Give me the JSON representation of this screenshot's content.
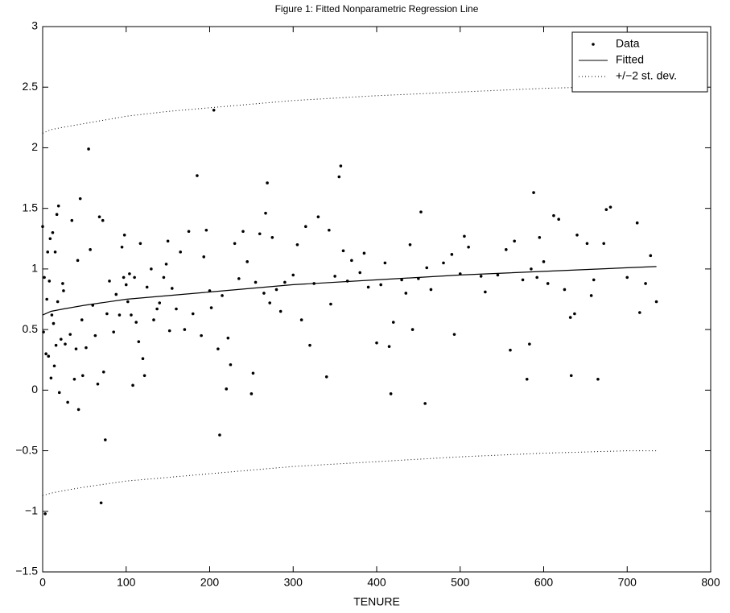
{
  "chart_data": {
    "type": "scatter",
    "title": "Figure 1: Fitted Nonparametric Regression Line",
    "x_label": "TENURE",
    "xlim": [
      0,
      800
    ],
    "xticks": [
      0,
      100,
      200,
      300,
      400,
      500,
      600,
      700,
      800
    ],
    "ylim": [
      -1.5,
      3
    ],
    "yticks": [
      {
        "value": -1.5,
        "label": "−1.5"
      },
      {
        "value": -1,
        "label": "−1"
      },
      {
        "value": -0.5,
        "label": "−0.5"
      },
      0,
      0.5,
      1,
      1.5,
      2,
      2.5,
      3
    ],
    "grid": false,
    "legend": "upper right",
    "series": [
      {
        "name": "Data",
        "color": "#000000",
        "marker": "dot",
        "x": [
          0,
          1,
          2,
          3,
          4,
          5,
          6,
          7,
          8,
          9,
          10,
          11,
          12,
          13,
          14,
          15,
          16,
          17,
          18,
          19,
          20,
          22,
          24,
          25,
          27,
          30,
          33,
          35,
          38,
          40,
          42,
          43,
          45,
          47,
          48,
          52,
          55,
          57,
          60,
          63,
          66,
          68,
          70,
          72,
          73,
          75,
          77,
          80,
          85,
          88,
          92,
          95,
          97,
          98,
          100,
          102,
          104,
          106,
          108,
          110,
          112,
          115,
          117,
          120,
          122,
          125,
          130,
          133,
          137,
          140,
          145,
          148,
          150,
          152,
          155,
          160,
          165,
          170,
          175,
          180,
          185,
          190,
          193,
          196,
          200,
          202,
          205,
          210,
          212,
          215,
          220,
          222,
          225,
          230,
          235,
          240,
          245,
          250,
          252,
          255,
          260,
          265,
          267,
          269,
          272,
          275,
          280,
          285,
          290,
          300,
          305,
          310,
          315,
          320,
          325,
          330,
          340,
          343,
          345,
          350,
          355,
          357,
          360,
          365,
          370,
          380,
          385,
          390,
          400,
          405,
          410,
          415,
          417,
          420,
          430,
          435,
          440,
          443,
          450,
          453,
          458,
          460,
          465,
          480,
          490,
          493,
          500,
          505,
          510,
          525,
          530,
          545,
          555,
          560,
          565,
          575,
          580,
          583,
          585,
          588,
          592,
          595,
          600,
          605,
          612,
          618,
          625,
          632,
          633,
          637,
          640,
          652,
          657,
          660,
          665,
          672,
          675,
          680,
          700,
          712,
          715,
          722,
          728,
          735
        ],
        "values": [
          1.35,
          0.48,
          0.93,
          -1.02,
          0.3,
          0.75,
          1.14,
          0.28,
          0.9,
          1.25,
          0.1,
          0.62,
          1.3,
          0.55,
          0.2,
          1.14,
          0.37,
          1.45,
          0.73,
          1.52,
          -0.02,
          0.42,
          0.88,
          0.82,
          0.38,
          -0.1,
          0.46,
          1.4,
          0.09,
          0.34,
          1.07,
          -0.16,
          1.58,
          0.58,
          0.12,
          0.35,
          1.99,
          1.16,
          0.7,
          0.45,
          0.05,
          1.43,
          -0.93,
          1.4,
          0.15,
          -0.41,
          0.63,
          0.9,
          0.48,
          0.79,
          0.62,
          1.18,
          0.93,
          1.28,
          0.87,
          0.73,
          0.96,
          0.62,
          0.04,
          0.93,
          0.56,
          0.4,
          1.21,
          0.26,
          0.12,
          0.85,
          1.0,
          0.58,
          0.67,
          0.72,
          0.93,
          1.04,
          1.23,
          0.49,
          0.84,
          0.67,
          1.14,
          0.5,
          1.31,
          0.63,
          1.77,
          0.45,
          1.1,
          1.32,
          0.82,
          0.68,
          2.31,
          0.34,
          -0.37,
          0.78,
          0.01,
          0.43,
          0.21,
          1.21,
          0.92,
          1.31,
          1.06,
          -0.03,
          0.14,
          0.89,
          1.29,
          0.8,
          1.46,
          1.71,
          0.72,
          1.26,
          0.83,
          0.65,
          0.89,
          0.95,
          1.2,
          0.58,
          1.35,
          0.37,
          0.88,
          1.43,
          0.11,
          1.32,
          0.71,
          0.94,
          1.76,
          1.85,
          1.15,
          0.9,
          1.07,
          0.97,
          1.13,
          0.85,
          0.39,
          0.87,
          1.05,
          0.36,
          -0.03,
          0.56,
          0.91,
          0.8,
          1.2,
          0.5,
          0.92,
          1.47,
          -0.11,
          1.01,
          0.83,
          1.05,
          1.12,
          0.46,
          0.96,
          1.27,
          1.18,
          0.94,
          0.81,
          0.95,
          1.16,
          0.33,
          1.23,
          0.91,
          0.09,
          0.38,
          1.0,
          1.63,
          0.93,
          1.26,
          1.06,
          0.88,
          1.44,
          1.41,
          0.83,
          0.6,
          0.12,
          0.63,
          1.28,
          1.21,
          0.78,
          0.91,
          0.09,
          1.21,
          1.49,
          1.51,
          0.93,
          1.38,
          0.64,
          0.88,
          1.11,
          0.73
        ]
      },
      {
        "name": "Fitted",
        "color": "#000000",
        "line": "solid",
        "x": [
          0,
          10,
          25,
          50,
          100,
          150,
          200,
          300,
          400,
          500,
          600,
          700,
          735
        ],
        "values": [
          0.62,
          0.65,
          0.67,
          0.7,
          0.75,
          0.78,
          0.81,
          0.87,
          0.91,
          0.95,
          0.98,
          1.01,
          1.02
        ]
      },
      {
        "name": "+/−2 st. dev.",
        "color": "#000000",
        "line": "dotted",
        "x": [
          0,
          10,
          25,
          50,
          100,
          150,
          200,
          300,
          400,
          500,
          600,
          700,
          735
        ],
        "upper": [
          2.12,
          2.15,
          2.17,
          2.2,
          2.26,
          2.3,
          2.33,
          2.39,
          2.43,
          2.46,
          2.49,
          2.51,
          2.52
        ],
        "lower": [
          -0.87,
          -0.85,
          -0.83,
          -0.8,
          -0.75,
          -0.72,
          -0.69,
          -0.63,
          -0.59,
          -0.55,
          -0.52,
          -0.5,
          -0.5
        ]
      }
    ]
  }
}
